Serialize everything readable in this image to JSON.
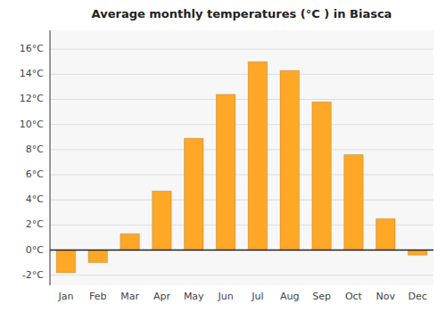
{
  "chart_data": {
    "type": "bar",
    "title": "Average monthly temperatures (°C ) in Biasca",
    "categories": [
      "Jan",
      "Feb",
      "Mar",
      "Apr",
      "May",
      "Jun",
      "Jul",
      "Aug",
      "Sep",
      "Oct",
      "Nov",
      "Dec"
    ],
    "values": [
      -1.8,
      -1.0,
      1.3,
      4.7,
      8.9,
      12.4,
      15.0,
      14.3,
      11.8,
      7.6,
      2.5,
      -0.4
    ],
    "color": "#FFA726",
    "ylim": [
      -2.8,
      17.5
    ],
    "yticks": [
      {
        "value": -2,
        "label": "-2°C"
      },
      {
        "value": 0,
        "label": "0°C"
      },
      {
        "value": 2,
        "label": "2°C"
      },
      {
        "value": 4,
        "label": "4°C"
      },
      {
        "value": 6,
        "label": "6°C"
      },
      {
        "value": 8,
        "label": "8°C"
      },
      {
        "value": 10,
        "label": "10°C"
      },
      {
        "value": 12,
        "label": "12°C"
      },
      {
        "value": 14,
        "label": "14°C"
      },
      {
        "value": 16,
        "label": "16°C"
      }
    ],
    "grid": true
  }
}
